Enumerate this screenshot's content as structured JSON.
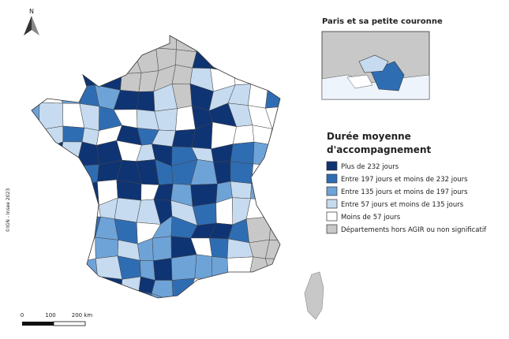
{
  "north_label": "N",
  "copyright": "©IGN - Insee 2023",
  "inset": {
    "title": "Paris et sa petite couronne"
  },
  "legend": {
    "title_lines": [
      "Durée moyenne",
      "d'accompagnement"
    ],
    "items": [
      {
        "label": "Plus de 232 jours",
        "color": "#0f3474"
      },
      {
        "label": "Entre 197 jours et moins de 232 jours",
        "color": "#2f6db3"
      },
      {
        "label": "Entre 135 jours et moins de 197 jours",
        "color": "#6ea3d8"
      },
      {
        "label": "Entre 57 jours et moins de 135 jours",
        "color": "#c6dbf0"
      },
      {
        "label": "Moins de 57 jours",
        "color": "#ffffff"
      },
      {
        "label": "Départements hors AGIR ou non significatif",
        "color": "#c8c8c8"
      }
    ]
  },
  "scale": {
    "labels": [
      "0",
      "100",
      "200 km"
    ]
  }
}
